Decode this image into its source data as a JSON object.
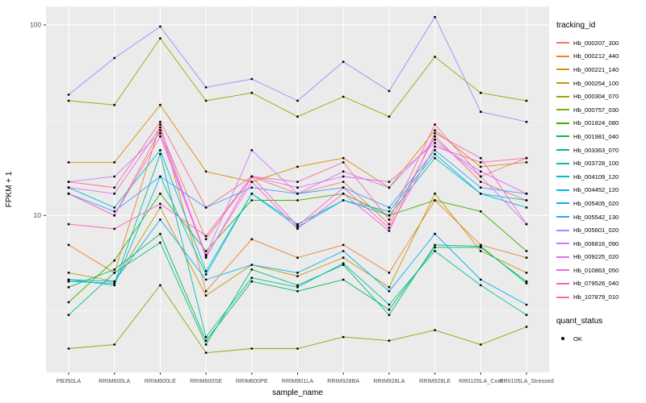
{
  "chart_data": {
    "type": "line",
    "title": "",
    "xlabel": "sample_name",
    "ylabel": "FPKM + 1",
    "y_scale": "log10",
    "ylim": [
      1.5,
      125
    ],
    "y_ticks": [
      10,
      100
    ],
    "y_minor_ticks": [
      3.162,
      31.62
    ],
    "grid": true,
    "panel_bg": "#EBEBEB",
    "grid_color": "#FFFFFF",
    "point_color": "#000000",
    "axis_text_color": "#4D4D4D",
    "legend_position": "right",
    "categories": [
      "PB350LA",
      "RRIM600LA",
      "RRIM600LE",
      "RRIM600SE",
      "RRIM600PE",
      "RRIM901LA",
      "RRIM928BA",
      "RRIM928LA",
      "RRIM928LE",
      "RRII105LA_Cont",
      "RRII105LA_Stressed"
    ],
    "legend": {
      "color_title": "tracking_id",
      "shape_title": "quant_status",
      "shape_entries": [
        {
          "label": "OK"
        }
      ]
    },
    "series": [
      {
        "name": "Hb_000207_300",
        "color": "#F8766D",
        "values": [
          13,
          10,
          28,
          7.5,
          16,
          13,
          15,
          9,
          26,
          15,
          12
        ]
      },
      {
        "name": "Hb_000212_440",
        "color": "#EA8331",
        "values": [
          7,
          5,
          30,
          4,
          7.5,
          6,
          7,
          5,
          12,
          7,
          6
        ]
      },
      {
        "name": "Hb_000221_140",
        "color": "#D89000",
        "values": [
          19,
          19,
          38,
          17,
          15,
          18,
          20,
          14,
          28,
          18,
          19
        ]
      },
      {
        "name": "Hb_000254_100",
        "color": "#C09B00",
        "values": [
          5,
          4.5,
          11,
          3.8,
          5.5,
          4.8,
          6,
          4.2,
          13,
          6.5,
          5
        ]
      },
      {
        "name": "Hb_000304_070",
        "color": "#A3A500",
        "values": [
          40,
          38,
          85,
          40,
          44,
          33,
          42,
          33,
          68,
          44,
          40
        ]
      },
      {
        "name": "Hb_000757_030",
        "color": "#7CAE00",
        "values": [
          2.0,
          2.1,
          4.3,
          1.9,
          2.0,
          2.0,
          2.3,
          2.2,
          2.5,
          2.1,
          2.6
        ]
      },
      {
        "name": "Hb_001824_080",
        "color": "#39B600",
        "values": [
          3.5,
          5.8,
          13,
          6.5,
          12,
          12,
          13,
          10,
          12,
          10.5,
          6.5
        ]
      },
      {
        "name": "Hb_001981_040",
        "color": "#00BB4E",
        "values": [
          4.2,
          5.2,
          8,
          2.2,
          4.5,
          4.0,
          4.6,
          3.2,
          6.8,
          6.8,
          4.5
        ]
      },
      {
        "name": "Hb_003363_070",
        "color": "#00BF7D",
        "values": [
          3.0,
          5.0,
          7.2,
          2.1,
          5.2,
          4.3,
          5.5,
          3.0,
          7.0,
          6.9,
          4.4
        ]
      },
      {
        "name": "Hb_003728_100",
        "color": "#00C1A3",
        "values": [
          4.5,
          4.4,
          21,
          2.3,
          4.7,
          4.2,
          5.6,
          3.4,
          6.5,
          4.3,
          3.0
        ]
      },
      {
        "name": "Hb_004109_120",
        "color": "#00BFC4",
        "values": [
          4.6,
          4.3,
          16,
          4.9,
          13,
          9,
          12,
          10,
          20,
          13,
          11
        ]
      },
      {
        "name": "Hb_004452_120",
        "color": "#00BAE0",
        "values": [
          14,
          11,
          22,
          5.1,
          13,
          8.7,
          12,
          10.5,
          21,
          13,
          12
        ]
      },
      {
        "name": "Hb_005405_020",
        "color": "#00B0F6",
        "values": [
          4.6,
          4.5,
          9.5,
          4.6,
          5.5,
          5.0,
          6.5,
          4.0,
          8.0,
          4.6,
          3.4
        ]
      },
      {
        "name": "Hb_005542_130",
        "color": "#35A2FF",
        "values": [
          13,
          10.5,
          16,
          11,
          14,
          13,
          14,
          11,
          22,
          14,
          13
        ]
      },
      {
        "name": "Hb_005601_020",
        "color": "#9590FF",
        "values": [
          43,
          67,
          98,
          47,
          52,
          40,
          64,
          45,
          110,
          35,
          31
        ]
      },
      {
        "name": "Hb_006816_090",
        "color": "#C77CFF",
        "values": [
          15,
          16,
          27,
          6.2,
          22,
          13,
          17,
          14,
          25,
          16,
          9
        ]
      },
      {
        "name": "Hb_009225_020",
        "color": "#E76BF3",
        "values": [
          14,
          13,
          29,
          6.0,
          16,
          14,
          16,
          15,
          24,
          17,
          13
        ]
      },
      {
        "name": "Hb_010863_050",
        "color": "#FA62DB",
        "values": [
          13,
          10,
          26,
          6.1,
          15,
          8.5,
          13,
          8.3,
          27,
          20,
          9
        ]
      },
      {
        "name": "Hb_079526_040",
        "color": "#FF62BC",
        "values": [
          9,
          8.5,
          11.5,
          7.8,
          16,
          8.8,
          14,
          8.6,
          23,
          19,
          20
        ]
      },
      {
        "name": "Hb_107879_010",
        "color": "#FF6A98",
        "values": [
          15,
          14,
          31,
          11,
          16,
          15,
          19,
          9.5,
          30,
          16,
          20
        ]
      }
    ]
  }
}
